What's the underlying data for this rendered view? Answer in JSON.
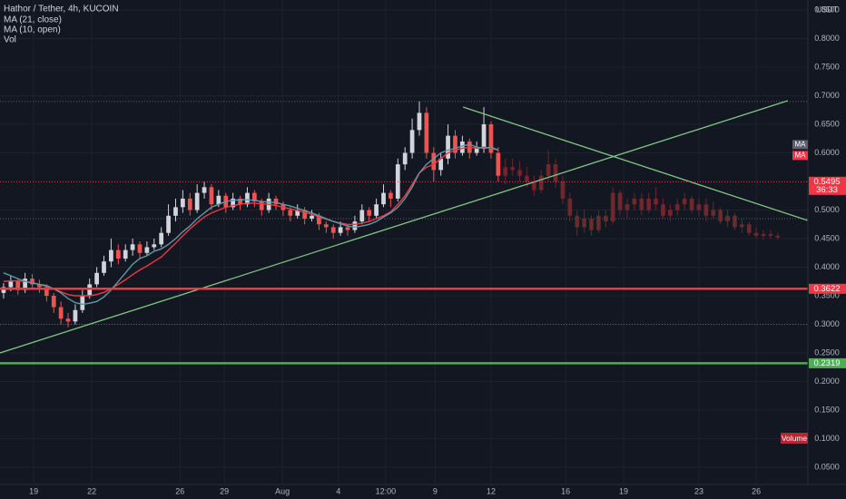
{
  "chart_data": {
    "type": "candlestick",
    "title": "Hathor / Tether, 4h, KUCOIN",
    "volume_legend": "Vol",
    "volume_label": "Volume",
    "currency": "USDT",
    "up_color": "#d1d4dc",
    "down_color": "#ef5350",
    "grid": true,
    "ylim": [
      0.0198,
      0.8675
    ],
    "yticks": [
      {
        "value": 0.05,
        "label": "0.0500"
      },
      {
        "value": 0.1,
        "label": "0.1000"
      },
      {
        "value": 0.15,
        "label": "0.1500"
      },
      {
        "value": 0.2,
        "label": "0.2000"
      },
      {
        "value": 0.25,
        "label": "0.2500"
      },
      {
        "value": 0.3,
        "label": "0.3000"
      },
      {
        "value": 0.35,
        "label": "0.3500"
      },
      {
        "value": 0.4,
        "label": "0.4000"
      },
      {
        "value": 0.45,
        "label": "0.4500"
      },
      {
        "value": 0.5,
        "label": "0.5000"
      },
      {
        "value": 0.6,
        "label": "0.6000"
      },
      {
        "value": 0.65,
        "label": "0.6500"
      },
      {
        "value": 0.7,
        "label": "0.7000"
      },
      {
        "value": 0.75,
        "label": "0.7500"
      },
      {
        "value": 0.8,
        "label": "0.8000"
      },
      {
        "value": 0.85,
        "label": "0.8500"
      }
    ],
    "xlim": [
      -0.5,
      112.2
    ],
    "xticks": [
      {
        "value": 4.2,
        "label": "19"
      },
      {
        "value": 12.3,
        "label": "22"
      },
      {
        "value": 24.6,
        "label": "26"
      },
      {
        "value": 30.8,
        "label": "29"
      },
      {
        "value": 38.9,
        "label": "Aug"
      },
      {
        "value": 46.7,
        "label": "4"
      },
      {
        "value": 53.3,
        "label": "12:00"
      },
      {
        "value": 60.2,
        "label": "9"
      },
      {
        "value": 68.0,
        "label": "12"
      },
      {
        "value": 78.4,
        "label": "16"
      },
      {
        "value": 86.5,
        "label": "19"
      },
      {
        "value": 97.0,
        "label": "23"
      },
      {
        "value": 105.0,
        "label": "26"
      }
    ],
    "ohlc": [
      [
        0.355,
        0.372,
        0.345,
        0.365
      ],
      [
        0.365,
        0.385,
        0.358,
        0.375
      ],
      [
        0.375,
        0.38,
        0.352,
        0.36
      ],
      [
        0.36,
        0.39,
        0.355,
        0.38
      ],
      [
        0.38,
        0.388,
        0.362,
        0.37
      ],
      [
        0.37,
        0.378,
        0.355,
        0.365
      ],
      [
        0.365,
        0.37,
        0.34,
        0.35
      ],
      [
        0.35,
        0.355,
        0.32,
        0.33
      ],
      [
        0.33,
        0.34,
        0.3,
        0.31
      ],
      [
        0.31,
        0.32,
        0.295,
        0.305
      ],
      [
        0.305,
        0.335,
        0.3,
        0.325
      ],
      [
        0.325,
        0.36,
        0.32,
        0.35
      ],
      [
        0.35,
        0.38,
        0.345,
        0.37
      ],
      [
        0.37,
        0.4,
        0.365,
        0.39
      ],
      [
        0.39,
        0.42,
        0.385,
        0.41
      ],
      [
        0.41,
        0.45,
        0.4,
        0.43
      ],
      [
        0.43,
        0.44,
        0.405,
        0.415
      ],
      [
        0.415,
        0.44,
        0.41,
        0.43
      ],
      [
        0.43,
        0.45,
        0.42,
        0.44
      ],
      [
        0.44,
        0.445,
        0.415,
        0.425
      ],
      [
        0.425,
        0.445,
        0.42,
        0.435
      ],
      [
        0.435,
        0.45,
        0.43,
        0.44
      ],
      [
        0.44,
        0.47,
        0.435,
        0.46
      ],
      [
        0.46,
        0.51,
        0.455,
        0.49
      ],
      [
        0.49,
        0.52,
        0.48,
        0.505
      ],
      [
        0.505,
        0.535,
        0.495,
        0.52
      ],
      [
        0.52,
        0.53,
        0.49,
        0.5
      ],
      [
        0.5,
        0.545,
        0.495,
        0.53
      ],
      [
        0.53,
        0.55,
        0.52,
        0.54
      ],
      [
        0.54,
        0.545,
        0.5,
        0.51
      ],
      [
        0.51,
        0.535,
        0.505,
        0.525
      ],
      [
        0.525,
        0.53,
        0.495,
        0.505
      ],
      [
        0.505,
        0.53,
        0.5,
        0.52
      ],
      [
        0.52,
        0.525,
        0.5,
        0.51
      ],
      [
        0.51,
        0.54,
        0.505,
        0.53
      ],
      [
        0.53,
        0.535,
        0.505,
        0.515
      ],
      [
        0.515,
        0.52,
        0.49,
        0.5
      ],
      [
        0.5,
        0.53,
        0.495,
        0.52
      ],
      [
        0.52,
        0.525,
        0.5,
        0.51
      ],
      [
        0.51,
        0.515,
        0.49,
        0.5
      ],
      [
        0.5,
        0.505,
        0.48,
        0.49
      ],
      [
        0.49,
        0.51,
        0.485,
        0.5
      ],
      [
        0.5,
        0.505,
        0.475,
        0.485
      ],
      [
        0.485,
        0.5,
        0.48,
        0.49
      ],
      [
        0.49,
        0.495,
        0.465,
        0.475
      ],
      [
        0.475,
        0.48,
        0.46,
        0.47
      ],
      [
        0.47,
        0.475,
        0.45,
        0.46
      ],
      [
        0.46,
        0.48,
        0.455,
        0.47
      ],
      [
        0.47,
        0.475,
        0.455,
        0.465
      ],
      [
        0.465,
        0.49,
        0.46,
        0.48
      ],
      [
        0.48,
        0.51,
        0.475,
        0.5
      ],
      [
        0.5,
        0.505,
        0.48,
        0.49
      ],
      [
        0.49,
        0.52,
        0.485,
        0.51
      ],
      [
        0.51,
        0.545,
        0.505,
        0.53
      ],
      [
        0.53,
        0.535,
        0.505,
        0.52
      ],
      [
        0.52,
        0.59,
        0.515,
        0.58
      ],
      [
        0.58,
        0.61,
        0.57,
        0.6
      ],
      [
        0.6,
        0.66,
        0.59,
        0.64
      ],
      [
        0.64,
        0.69,
        0.63,
        0.67
      ],
      [
        0.67,
        0.68,
        0.59,
        0.6
      ],
      [
        0.6,
        0.61,
        0.55,
        0.57
      ],
      [
        0.57,
        0.6,
        0.56,
        0.59
      ],
      [
        0.59,
        0.65,
        0.58,
        0.63
      ],
      [
        0.63,
        0.64,
        0.59,
        0.6
      ],
      [
        0.6,
        0.63,
        0.595,
        0.62
      ],
      [
        0.62,
        0.625,
        0.59,
        0.6
      ],
      [
        0.6,
        0.62,
        0.595,
        0.61
      ],
      [
        0.61,
        0.68,
        0.6,
        0.65
      ],
      [
        0.65,
        0.655,
        0.59,
        0.6
      ],
      [
        0.6,
        0.61,
        0.55,
        0.56
      ]
    ],
    "projection_color": "#7a2a2e",
    "projection": [
      [
        0.56,
        0.59,
        0.545,
        0.575
      ],
      [
        0.575,
        0.59,
        0.56,
        0.57
      ],
      [
        0.57,
        0.585,
        0.55,
        0.56
      ],
      [
        0.56,
        0.575,
        0.54,
        0.55
      ],
      [
        0.55,
        0.56,
        0.525,
        0.535
      ],
      [
        0.535,
        0.57,
        0.53,
        0.56
      ],
      [
        0.56,
        0.605,
        0.55,
        0.58
      ],
      [
        0.58,
        0.59,
        0.54,
        0.55
      ],
      [
        0.55,
        0.56,
        0.51,
        0.52
      ],
      [
        0.52,
        0.53,
        0.48,
        0.49
      ],
      [
        0.49,
        0.5,
        0.455,
        0.47
      ],
      [
        0.47,
        0.5,
        0.46,
        0.485
      ],
      [
        0.485,
        0.49,
        0.455,
        0.465
      ],
      [
        0.465,
        0.5,
        0.46,
        0.49
      ],
      [
        0.49,
        0.5,
        0.47,
        0.48
      ],
      [
        0.48,
        0.54,
        0.475,
        0.53
      ],
      [
        0.53,
        0.535,
        0.49,
        0.5
      ],
      [
        0.5,
        0.52,
        0.485,
        0.51
      ],
      [
        0.51,
        0.53,
        0.5,
        0.52
      ],
      [
        0.52,
        0.53,
        0.49,
        0.5
      ],
      [
        0.5,
        0.53,
        0.495,
        0.52
      ],
      [
        0.52,
        0.54,
        0.5,
        0.51
      ],
      [
        0.51,
        0.52,
        0.485,
        0.49
      ],
      [
        0.49,
        0.51,
        0.48,
        0.5
      ],
      [
        0.5,
        0.52,
        0.49,
        0.51
      ],
      [
        0.51,
        0.53,
        0.5,
        0.52
      ],
      [
        0.52,
        0.525,
        0.495,
        0.5
      ],
      [
        0.5,
        0.52,
        0.49,
        0.51
      ],
      [
        0.51,
        0.52,
        0.48,
        0.49
      ],
      [
        0.49,
        0.515,
        0.485,
        0.5
      ],
      [
        0.5,
        0.505,
        0.475,
        0.48
      ],
      [
        0.48,
        0.5,
        0.47,
        0.49
      ],
      [
        0.49,
        0.495,
        0.465,
        0.47
      ],
      [
        0.47,
        0.485,
        0.46,
        0.475
      ],
      [
        0.475,
        0.48,
        0.455,
        0.46
      ],
      [
        0.46,
        0.47,
        0.45,
        0.455
      ],
      [
        0.455,
        0.465,
        0.448,
        0.458
      ],
      [
        0.458,
        0.465,
        0.45,
        0.455
      ],
      [
        0.455,
        0.46,
        0.448,
        0.452
      ]
    ],
    "series": [
      {
        "name": "MA (21, close)",
        "tag": "MA",
        "color": "#f23645",
        "values": [
          0.375,
          0.376,
          0.376,
          0.375,
          0.373,
          0.37,
          0.366,
          0.362,
          0.357,
          0.352,
          0.35,
          0.35,
          0.35,
          0.352,
          0.356,
          0.362,
          0.37,
          0.378,
          0.387,
          0.395,
          0.402,
          0.41,
          0.418,
          0.43,
          0.442,
          0.455,
          0.467,
          0.478,
          0.488,
          0.495,
          0.5,
          0.505,
          0.508,
          0.51,
          0.512,
          0.512,
          0.511,
          0.51,
          0.508,
          0.505,
          0.502,
          0.499,
          0.496,
          0.492,
          0.488,
          0.484,
          0.48,
          0.477,
          0.475,
          0.475,
          0.477,
          0.48,
          0.485,
          0.49,
          0.497,
          0.51,
          0.525,
          0.545,
          0.565,
          0.575,
          0.58,
          0.59,
          0.6,
          0.605,
          0.608,
          0.61,
          0.608,
          0.61,
          0.608,
          0.605
        ]
      },
      {
        "name": "MA (10, open)",
        "tag": "MA",
        "color": "#5d9aa8",
        "values": [
          0.39,
          0.385,
          0.38,
          0.375,
          0.372,
          0.37,
          0.368,
          0.362,
          0.355,
          0.345,
          0.338,
          0.335,
          0.337,
          0.34,
          0.348,
          0.36,
          0.375,
          0.39,
          0.405,
          0.415,
          0.42,
          0.428,
          0.432,
          0.44,
          0.45,
          0.462,
          0.472,
          0.485,
          0.495,
          0.505,
          0.51,
          0.515,
          0.517,
          0.518,
          0.518,
          0.517,
          0.515,
          0.514,
          0.513,
          0.51,
          0.507,
          0.503,
          0.499,
          0.495,
          0.49,
          0.485,
          0.48,
          0.476,
          0.472,
          0.47,
          0.472,
          0.475,
          0.48,
          0.488,
          0.495,
          0.505,
          0.52,
          0.54,
          0.565,
          0.58,
          0.59,
          0.6,
          0.605,
          0.608,
          0.612,
          0.615,
          0.61,
          0.608,
          0.61,
          0.605
        ]
      }
    ],
    "trendlines": [
      {
        "x": [
          -0.5,
          109.4
        ],
        "y": [
          0.25,
          0.6913
        ],
        "color": "#81c784"
      },
      {
        "x": [
          64.1,
          112.2
        ],
        "y": [
          0.6802,
          0.4817
        ],
        "color": "#81c784"
      }
    ],
    "levels": [
      {
        "value": 0.3622,
        "label": "0.3622",
        "color": "#f23645",
        "style": "solid"
      },
      {
        "value": 0.2319,
        "label": "0.2319",
        "color": "#4caf50",
        "style": "solid"
      },
      {
        "value": 0.5495,
        "label": "0.5495",
        "countdown": "36:33",
        "color": "#f23645",
        "style": "dotted"
      }
    ],
    "dotted_levels": [
      0.69,
      0.485,
      0.3
    ]
  }
}
